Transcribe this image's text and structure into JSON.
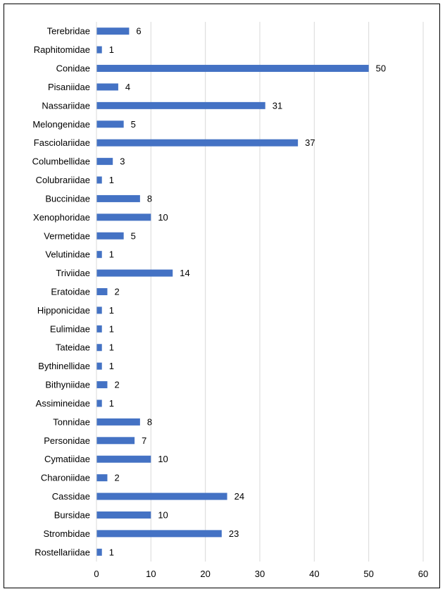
{
  "chart_data": {
    "type": "bar",
    "orientation": "horizontal",
    "title": "",
    "xlabel": "",
    "ylabel": "",
    "xlim": [
      0,
      60
    ],
    "x_ticks": [
      0,
      10,
      20,
      30,
      40,
      50,
      60
    ],
    "grid": "vertical",
    "bar_color": "#4472C4",
    "categories": [
      "Terebridae",
      "Raphitomidae",
      "Conidae",
      "Pisaniidae",
      "Nassariidae",
      "Melongenidae",
      "Fasciolariidae",
      "Columbellidae",
      "Colubrariidae",
      "Buccinidae",
      "Xenophoridae",
      "Vermetidae",
      "Velutinidae",
      "Triviidae",
      "Eratoidae",
      "Hipponicidae",
      "Eulimidae",
      "Tateidae",
      "Bythinellidae",
      "Bithyniidae",
      "Assimineidae",
      "Tonnidae",
      "Personidae",
      "Cymatiidae",
      "Charoniidae",
      "Cassidae",
      "Bursidae",
      "Strombidae",
      "Rostellariidae"
    ],
    "values": [
      6,
      1,
      50,
      4,
      31,
      5,
      37,
      3,
      1,
      8,
      10,
      5,
      1,
      14,
      2,
      1,
      1,
      1,
      1,
      2,
      1,
      8,
      7,
      10,
      2,
      24,
      10,
      23,
      1
    ]
  }
}
